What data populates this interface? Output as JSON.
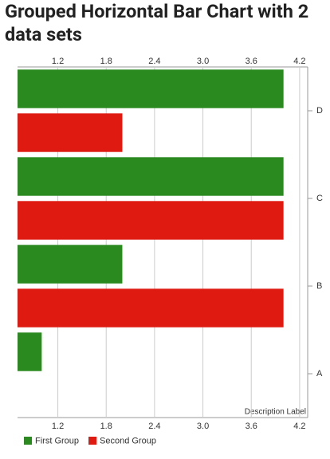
{
  "chart_data": {
    "type": "bar",
    "orientation": "horizontal",
    "title": "Grouped Horizontal Bar Chart with 2 data sets",
    "description": "Description Label",
    "categories": [
      "A",
      "B",
      "C",
      "D"
    ],
    "series": [
      {
        "name": "First Group",
        "color": "#2b8a1f",
        "values": [
          1,
          2,
          4,
          4
        ]
      },
      {
        "name": "Second Group",
        "color": "#df1a10",
        "values": [
          null,
          4,
          4,
          2
        ]
      }
    ],
    "xlim": [
      0.7,
      4.3
    ],
    "xticks": [
      1.2,
      1.8,
      2.4,
      {
        "value": 3,
        "label": "3.0"
      },
      3.6,
      4.2
    ],
    "grid": true,
    "legend": "bottom-left"
  }
}
